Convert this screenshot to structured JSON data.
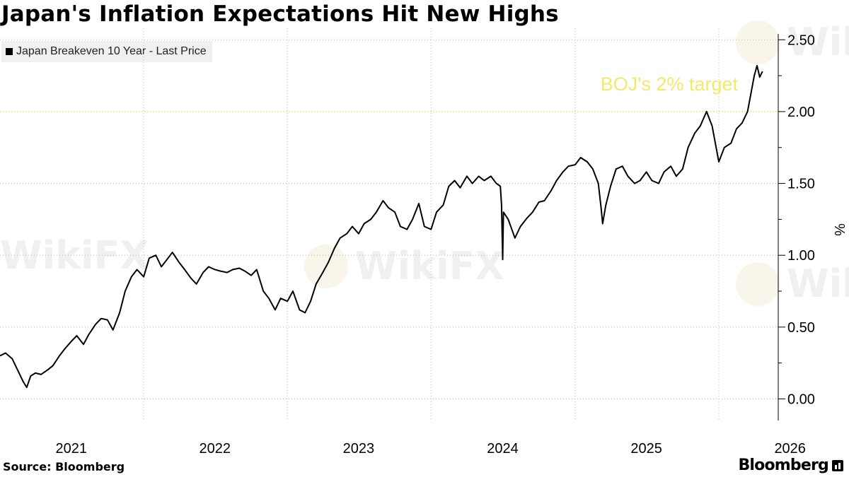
{
  "title": "Japan's Inflation Expectations Hit New Highs",
  "legend": {
    "label": "Japan Breakeven 10 Year - Last Price"
  },
  "annotation": {
    "text": "BOJ's 2% target",
    "value": 2.0,
    "color": "#f2e96a"
  },
  "source": "Source:  Bloomberg",
  "brand": "Bloomberg",
  "watermark": "WikiFX",
  "chart_data": {
    "type": "line",
    "title": "Japan's Inflation Expectations Hit New Highs",
    "ylabel": "%",
    "xlabel": "",
    "ylim": [
      -0.15,
      2.58
    ],
    "xlim": [
      "2021-01-01",
      "2026-06-01"
    ],
    "y_ticks": [
      "0.00",
      "0.50",
      "1.00",
      "1.50",
      "2.00",
      "2.50"
    ],
    "x_tick_labels": [
      "2021",
      "2022",
      "2023",
      "2024",
      "2025",
      "2026"
    ],
    "grid": true,
    "legend_position": "top-left",
    "series": [
      {
        "name": "Japan Breakeven 10 Year - Last Price",
        "color": "#000000",
        "points": [
          [
            "2021-01-01",
            0.3
          ],
          [
            "2021-01-15",
            0.32
          ],
          [
            "2021-02-01",
            0.28
          ],
          [
            "2021-02-15",
            0.2
          ],
          [
            "2021-03-01",
            0.12
          ],
          [
            "2021-03-10",
            0.08
          ],
          [
            "2021-03-20",
            0.16
          ],
          [
            "2021-04-01",
            0.18
          ],
          [
            "2021-04-15",
            0.17
          ],
          [
            "2021-05-01",
            0.2
          ],
          [
            "2021-05-15",
            0.23
          ],
          [
            "2021-06-01",
            0.3
          ],
          [
            "2021-06-15",
            0.35
          ],
          [
            "2021-07-01",
            0.4
          ],
          [
            "2021-07-15",
            0.44
          ],
          [
            "2021-08-01",
            0.38
          ],
          [
            "2021-08-15",
            0.45
          ],
          [
            "2021-09-01",
            0.52
          ],
          [
            "2021-09-15",
            0.56
          ],
          [
            "2021-10-01",
            0.55
          ],
          [
            "2021-10-15",
            0.48
          ],
          [
            "2021-11-01",
            0.6
          ],
          [
            "2021-11-15",
            0.75
          ],
          [
            "2021-12-01",
            0.85
          ],
          [
            "2021-12-15",
            0.9
          ],
          [
            "2022-01-01",
            0.85
          ],
          [
            "2022-01-15",
            0.98
          ],
          [
            "2022-02-01",
            1.0
          ],
          [
            "2022-02-15",
            0.92
          ],
          [
            "2022-03-01",
            0.97
          ],
          [
            "2022-03-15",
            1.02
          ],
          [
            "2022-04-01",
            0.95
          ],
          [
            "2022-04-15",
            0.9
          ],
          [
            "2022-05-01",
            0.84
          ],
          [
            "2022-05-15",
            0.8
          ],
          [
            "2022-06-01",
            0.88
          ],
          [
            "2022-06-15",
            0.92
          ],
          [
            "2022-07-01",
            0.9
          ],
          [
            "2022-07-15",
            0.89
          ],
          [
            "2022-08-01",
            0.88
          ],
          [
            "2022-08-15",
            0.9
          ],
          [
            "2022-09-01",
            0.91
          ],
          [
            "2022-09-15",
            0.89
          ],
          [
            "2022-10-01",
            0.86
          ],
          [
            "2022-10-15",
            0.9
          ],
          [
            "2022-11-01",
            0.75
          ],
          [
            "2022-11-15",
            0.7
          ],
          [
            "2022-12-01",
            0.62
          ],
          [
            "2022-12-15",
            0.7
          ],
          [
            "2023-01-01",
            0.68
          ],
          [
            "2023-01-15",
            0.75
          ],
          [
            "2023-02-01",
            0.62
          ],
          [
            "2023-02-15",
            0.6
          ],
          [
            "2023-03-01",
            0.68
          ],
          [
            "2023-03-15",
            0.8
          ],
          [
            "2023-04-01",
            0.88
          ],
          [
            "2023-04-15",
            0.95
          ],
          [
            "2023-05-01",
            1.05
          ],
          [
            "2023-05-15",
            1.12
          ],
          [
            "2023-06-01",
            1.15
          ],
          [
            "2023-06-15",
            1.2
          ],
          [
            "2023-07-01",
            1.15
          ],
          [
            "2023-07-15",
            1.22
          ],
          [
            "2023-08-01",
            1.25
          ],
          [
            "2023-08-15",
            1.3
          ],
          [
            "2023-09-01",
            1.38
          ],
          [
            "2023-09-15",
            1.33
          ],
          [
            "2023-10-01",
            1.3
          ],
          [
            "2023-10-15",
            1.2
          ],
          [
            "2023-11-01",
            1.18
          ],
          [
            "2023-11-15",
            1.25
          ],
          [
            "2023-12-01",
            1.36
          ],
          [
            "2023-12-15",
            1.2
          ],
          [
            "2024-01-01",
            1.18
          ],
          [
            "2024-01-15",
            1.3
          ],
          [
            "2024-02-01",
            1.35
          ],
          [
            "2024-02-15",
            1.48
          ],
          [
            "2024-03-01",
            1.52
          ],
          [
            "2024-03-15",
            1.47
          ],
          [
            "2024-04-01",
            1.55
          ],
          [
            "2024-04-15",
            1.5
          ],
          [
            "2024-05-01",
            1.55
          ],
          [
            "2024-05-15",
            1.52
          ],
          [
            "2024-06-01",
            1.55
          ],
          [
            "2024-06-15",
            1.5
          ],
          [
            "2024-06-25",
            1.48
          ],
          [
            "2024-06-28",
            1.35
          ],
          [
            "2024-07-01",
            0.97
          ],
          [
            "2024-07-03",
            1.3
          ],
          [
            "2024-07-15",
            1.25
          ],
          [
            "2024-08-01",
            1.12
          ],
          [
            "2024-08-15",
            1.2
          ],
          [
            "2024-09-01",
            1.26
          ],
          [
            "2024-09-15",
            1.3
          ],
          [
            "2024-10-01",
            1.37
          ],
          [
            "2024-10-15",
            1.38
          ],
          [
            "2024-11-01",
            1.45
          ],
          [
            "2024-11-15",
            1.52
          ],
          [
            "2024-12-01",
            1.58
          ],
          [
            "2024-12-15",
            1.62
          ],
          [
            "2025-01-01",
            1.63
          ],
          [
            "2025-01-15",
            1.68
          ],
          [
            "2025-02-01",
            1.65
          ],
          [
            "2025-02-15",
            1.6
          ],
          [
            "2025-03-01",
            1.5
          ],
          [
            "2025-03-08",
            1.33
          ],
          [
            "2025-03-12",
            1.22
          ],
          [
            "2025-03-20",
            1.35
          ],
          [
            "2025-04-01",
            1.48
          ],
          [
            "2025-04-15",
            1.6
          ],
          [
            "2025-05-01",
            1.62
          ],
          [
            "2025-05-15",
            1.55
          ],
          [
            "2025-06-01",
            1.5
          ],
          [
            "2025-06-15",
            1.52
          ],
          [
            "2025-07-01",
            1.58
          ],
          [
            "2025-07-15",
            1.52
          ],
          [
            "2025-08-01",
            1.5
          ],
          [
            "2025-08-15",
            1.58
          ],
          [
            "2025-09-01",
            1.62
          ],
          [
            "2025-09-15",
            1.55
          ],
          [
            "2025-10-01",
            1.6
          ],
          [
            "2025-10-15",
            1.75
          ],
          [
            "2025-11-01",
            1.85
          ],
          [
            "2025-11-15",
            1.9
          ],
          [
            "2025-12-01",
            2.0
          ],
          [
            "2025-12-15",
            1.9
          ],
          [
            "2026-01-01",
            1.65
          ],
          [
            "2026-01-15",
            1.75
          ],
          [
            "2026-02-01",
            1.78
          ],
          [
            "2026-02-15",
            1.88
          ],
          [
            "2026-03-01",
            1.92
          ],
          [
            "2026-03-15",
            2.0
          ],
          [
            "2026-04-01",
            2.25
          ],
          [
            "2026-04-08",
            2.32
          ],
          [
            "2026-04-15",
            2.24
          ],
          [
            "2026-04-22",
            2.28
          ]
        ]
      }
    ]
  }
}
